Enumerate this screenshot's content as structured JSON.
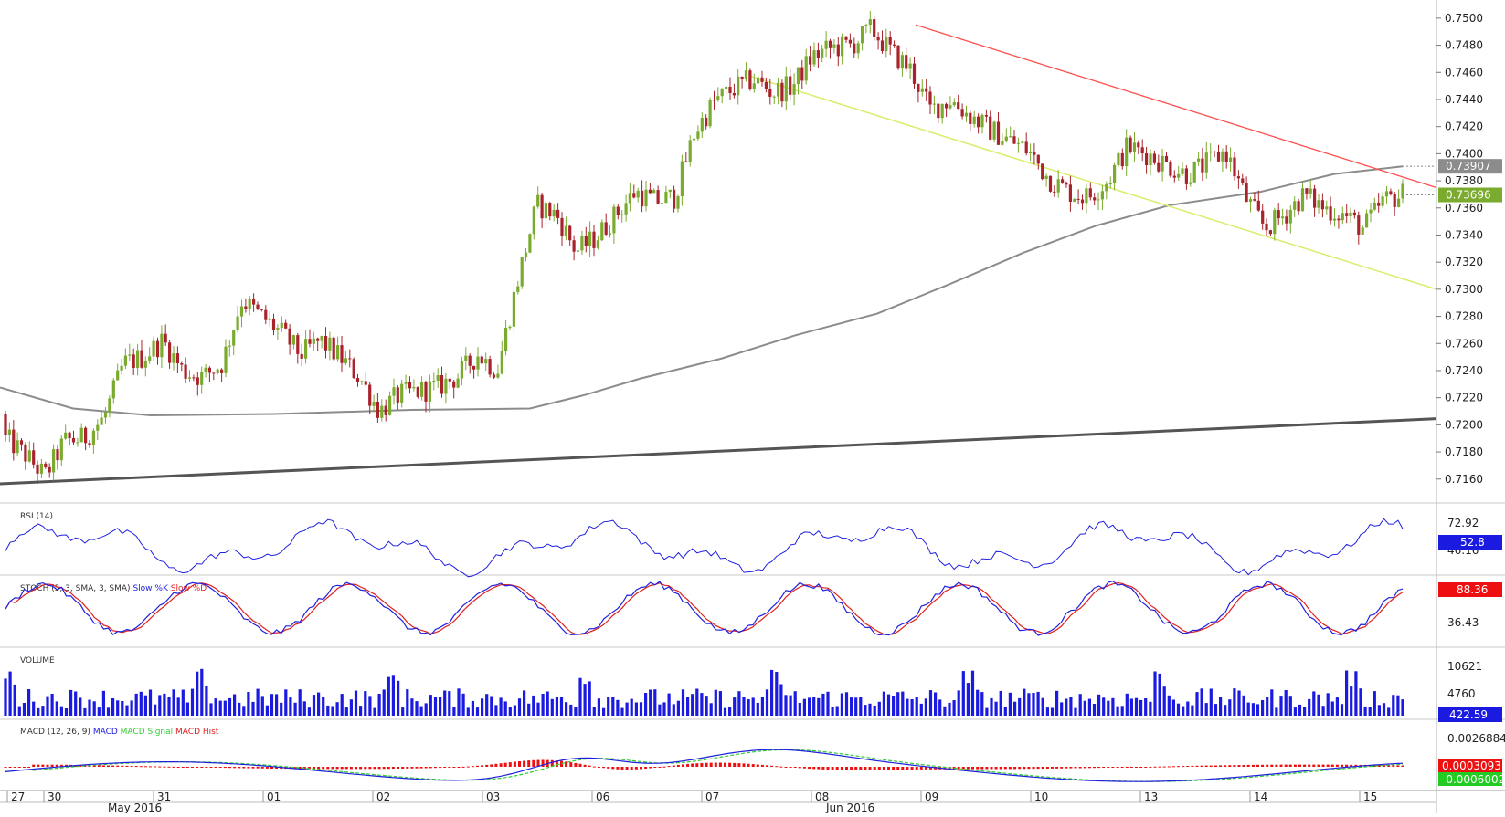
{
  "chart_data": {
    "type": "candlestick",
    "price_axis": {
      "ticks": [
        "0.7500",
        "0.7480",
        "0.7460",
        "0.7440",
        "0.7420",
        "0.7400",
        "0.7380",
        "0.7360",
        "0.7340",
        "0.7320",
        "0.7300",
        "0.7280",
        "0.7260",
        "0.7240",
        "0.7220",
        "0.7200",
        "0.7180",
        "0.7160"
      ],
      "ylim": [
        0.7143,
        0.7508
      ],
      "grid": false
    },
    "price_labels": {
      "sma": "0.73907",
      "last": "0.73696",
      "sma_value": 0.73907,
      "last_value": 0.73696
    },
    "x_axis": {
      "day_labels": [
        "27",
        "30",
        "31",
        "01",
        "02",
        "03",
        "06",
        "07",
        "08",
        "09",
        "10",
        "13",
        "14",
        "15"
      ],
      "month_labels": [
        "May 2016",
        "Jun 2016"
      ]
    },
    "candles_ohlc_summary": [
      [
        0.7208,
        0.721,
        0.7183,
        0.719
      ],
      [
        0.719,
        0.7195,
        0.717,
        0.7178
      ],
      [
        0.7178,
        0.7185,
        0.715,
        0.7162
      ],
      [
        0.7162,
        0.7198,
        0.7158,
        0.7188
      ],
      [
        0.7188,
        0.7195,
        0.718,
        0.719
      ],
      [
        0.719,
        0.7208,
        0.7185,
        0.7205
      ],
      [
        0.7205,
        0.7253,
        0.72,
        0.7245
      ],
      [
        0.7245,
        0.7258,
        0.7235,
        0.725
      ],
      [
        0.725,
        0.7268,
        0.724,
        0.7262
      ],
      [
        0.7262,
        0.7265,
        0.723,
        0.724
      ],
      [
        0.724,
        0.725,
        0.7225,
        0.7235
      ],
      [
        0.7235,
        0.725,
        0.7228,
        0.7245
      ],
      [
        0.7245,
        0.73,
        0.724,
        0.7292
      ],
      [
        0.7292,
        0.7298,
        0.7275,
        0.728
      ],
      [
        0.728,
        0.729,
        0.7262,
        0.7268
      ],
      [
        0.7268,
        0.7275,
        0.7245,
        0.7252
      ],
      [
        0.7252,
        0.727,
        0.7245,
        0.7262
      ],
      [
        0.7262,
        0.7265,
        0.7245,
        0.725
      ],
      [
        0.725,
        0.7255,
        0.723,
        0.7235
      ],
      [
        0.7235,
        0.724,
        0.7205,
        0.721
      ],
      [
        0.721,
        0.7228,
        0.7203,
        0.7222
      ],
      [
        0.7222,
        0.723,
        0.7215,
        0.7225
      ],
      [
        0.7225,
        0.7232,
        0.7218,
        0.7228
      ],
      [
        0.7228,
        0.724,
        0.7222,
        0.7236
      ],
      [
        0.7236,
        0.7258,
        0.7232,
        0.7252
      ],
      [
        0.7252,
        0.7258,
        0.7235,
        0.724
      ],
      [
        0.724,
        0.731,
        0.7238,
        0.7305
      ],
      [
        0.7305,
        0.737,
        0.73,
        0.7362
      ],
      [
        0.7362,
        0.7378,
        0.735,
        0.7355
      ],
      [
        0.7355,
        0.736,
        0.7322,
        0.7328
      ],
      [
        0.7328,
        0.7345,
        0.7318,
        0.7338
      ],
      [
        0.7338,
        0.7362,
        0.7332,
        0.7355
      ],
      [
        0.7355,
        0.738,
        0.735,
        0.7372
      ],
      [
        0.7372,
        0.7382,
        0.7358,
        0.7365
      ],
      [
        0.7365,
        0.7375,
        0.7355,
        0.7368
      ],
      [
        0.7368,
        0.742,
        0.736,
        0.7415
      ],
      [
        0.7415,
        0.7445,
        0.741,
        0.7438
      ],
      [
        0.7438,
        0.7455,
        0.743,
        0.7448
      ],
      [
        0.7448,
        0.7462,
        0.7438,
        0.7455
      ],
      [
        0.7455,
        0.7465,
        0.744,
        0.7445
      ],
      [
        0.7445,
        0.7455,
        0.7432,
        0.745
      ],
      [
        0.745,
        0.7478,
        0.7445,
        0.7472
      ],
      [
        0.7472,
        0.7488,
        0.7465,
        0.7478
      ],
      [
        0.7478,
        0.7485,
        0.747,
        0.748
      ],
      [
        0.748,
        0.7508,
        0.7475,
        0.7492
      ],
      [
        0.7492,
        0.7498,
        0.747,
        0.7475
      ],
      [
        0.7475,
        0.748,
        0.7455,
        0.7462
      ],
      [
        0.7462,
        0.7468,
        0.742,
        0.7432
      ],
      [
        0.7432,
        0.7448,
        0.7425,
        0.744
      ],
      [
        0.744,
        0.745,
        0.742,
        0.7428
      ],
      [
        0.7428,
        0.7435,
        0.741,
        0.7418
      ],
      [
        0.7418,
        0.7422,
        0.74,
        0.741
      ],
      [
        0.741,
        0.742,
        0.7395,
        0.7402
      ],
      [
        0.7402,
        0.741,
        0.7375,
        0.7382
      ],
      [
        0.7382,
        0.7388,
        0.7365,
        0.7372
      ],
      [
        0.7372,
        0.7378,
        0.736,
        0.7368
      ],
      [
        0.7368,
        0.7385,
        0.7362,
        0.738
      ],
      [
        0.738,
        0.741,
        0.7375,
        0.7405
      ],
      [
        0.7405,
        0.7412,
        0.7392,
        0.74
      ],
      [
        0.74,
        0.7408,
        0.7385,
        0.7392
      ],
      [
        0.7392,
        0.7398,
        0.7378,
        0.7385
      ],
      [
        0.7385,
        0.7395,
        0.738,
        0.7392
      ],
      [
        0.7392,
        0.7408,
        0.7385,
        0.7402
      ],
      [
        0.7402,
        0.7408,
        0.736,
        0.7368
      ],
      [
        0.7368,
        0.7372,
        0.733,
        0.7345
      ],
      [
        0.7345,
        0.7362,
        0.7335,
        0.7355
      ],
      [
        0.7355,
        0.7382,
        0.7348,
        0.737
      ],
      [
        0.737,
        0.7376,
        0.735,
        0.736
      ],
      [
        0.736,
        0.7368,
        0.7345,
        0.7355
      ],
      [
        0.7355,
        0.736,
        0.7335,
        0.7345
      ],
      [
        0.7345,
        0.7372,
        0.734,
        0.7365
      ],
      [
        0.7365,
        0.7378,
        0.736,
        0.737
      ]
    ],
    "indicators": [
      {
        "name": "RSI (14)",
        "axis_ticks": [
          "72.92",
          "46.16"
        ],
        "value": "52.8"
      },
      {
        "name": "STOCH (5, 3, SMA, 3, SMA)",
        "series": [
          "Slow %K",
          "Slow %D"
        ],
        "axis_ticks": [
          "36.43"
        ],
        "value": "88.36"
      },
      {
        "name": "VOLUME",
        "axis_ticks": [
          "10621",
          "4760"
        ],
        "value": "422.59"
      },
      {
        "name": "MACD (12, 26, 9)",
        "series": [
          "MACD",
          "MACD Signal",
          "MACD Hist"
        ],
        "axis_ticks": [
          "0.0026884"
        ],
        "value": "0.0003093",
        "signal_value": "-0.0006002"
      }
    ],
    "colors": {
      "up": "#7aab2e",
      "down": "#a8232b",
      "sma": "#8c8c8c",
      "trend_red": "#ff5050",
      "trend_yellow": "#d8ee6a",
      "support": "#555555",
      "rsi": "#2020e0",
      "volume": "#1a1ae0",
      "macd_hist": "#ee1010",
      "macd_signal": "#33cc33"
    }
  }
}
